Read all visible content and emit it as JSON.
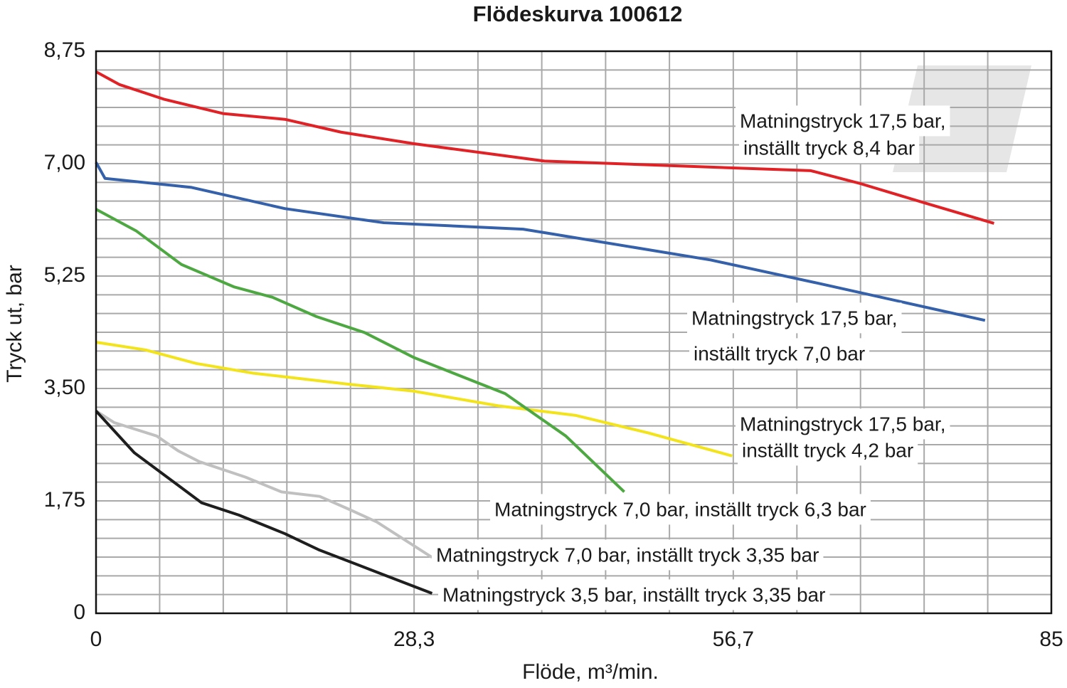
{
  "chart_data": {
    "type": "line",
    "title": "Flödeskurva 100612",
    "x_label": "Flöde, m³/min.",
    "y_label": "Tryck ut, bar",
    "xlim": [
      0,
      85
    ],
    "ylim": [
      0,
      8.75
    ],
    "xticks": [
      0,
      {
        "value": 28.3,
        "label": "28,3"
      },
      {
        "value": 56.7,
        "label": "56,7"
      },
      85
    ],
    "yticks": [
      0,
      {
        "value": 1.75,
        "label": "1,75"
      },
      {
        "value": 3.5,
        "label": "3,50"
      },
      {
        "value": 5.25,
        "label": "5,25"
      },
      {
        "value": 7,
        "label": "7,00"
      },
      {
        "value": 8.75,
        "label": "8,75"
      }
    ],
    "grid": true,
    "series": [
      {
        "color": "#e02226",
        "label_lines": [
          "Matningstryck 17,5 bar,",
          "inställt tryck 8,4 bar"
        ],
        "x": [
          0,
          2.1,
          6.1,
          11.3,
          16.8,
          21.8,
          28.3,
          39.9,
          63.6,
          68.0,
          73.7,
          79.9
        ],
        "values": [
          8.43,
          8.23,
          8.0,
          7.78,
          7.69,
          7.49,
          7.31,
          7.04,
          6.89,
          6.69,
          6.39,
          6.07
        ]
      },
      {
        "color": "#3561ab",
        "label_lines": [
          "Matningstryck 17,5 bar,",
          "inställt tryck 7,0 bar"
        ],
        "x": [
          0,
          0.8,
          8.5,
          16.8,
          25.6,
          38.0,
          54.7,
          64.2,
          79.1
        ],
        "values": [
          7.02,
          6.77,
          6.63,
          6.3,
          6.08,
          5.98,
          5.5,
          5.14,
          4.56
        ]
      },
      {
        "color": "#f2e31b",
        "label_lines": [
          "Matningstryck 17,5 bar,",
          "inställt tryck 4,2 bar"
        ],
        "x": [
          0,
          4.4,
          8.9,
          13.9,
          22.8,
          28.2,
          35.8,
          42.7,
          49.1,
          56.6
        ],
        "values": [
          4.22,
          4.1,
          3.89,
          3.74,
          3.56,
          3.46,
          3.23,
          3.08,
          2.81,
          2.45
        ]
      },
      {
        "color": "#4ea842",
        "label_lines": [
          "Matningstryck 7,0 bar, inställt tryck 6,3 bar"
        ],
        "x": [
          0,
          3.6,
          7.6,
          12.3,
          15.7,
          19.6,
          23.9,
          28.3,
          36.4,
          41.8,
          47.0
        ],
        "values": [
          6.29,
          5.95,
          5.43,
          5.08,
          4.92,
          4.62,
          4.37,
          3.98,
          3.42,
          2.76,
          1.89
        ]
      },
      {
        "color": "#c0c0c0",
        "label_lines": [
          "Matningstryck 7,0 bar, inställt tryck 3,35 bar"
        ],
        "x": [
          0,
          1.6,
          5.4,
          7.3,
          9.2,
          13.3,
          16.5,
          19.9,
          22.5,
          25.0,
          29.9
        ],
        "values": [
          3.15,
          2.97,
          2.76,
          2.53,
          2.36,
          2.12,
          1.89,
          1.82,
          1.62,
          1.42,
          0.87
        ]
      },
      {
        "color": "#1e1e1e",
        "label_lines": [
          "Matningstryck 3,5 bar, inställt tryck 3,35 bar"
        ],
        "x": [
          0,
          3.4,
          9.4,
          12.7,
          16.8,
          19.8,
          25.0,
          29.9
        ],
        "values": [
          3.15,
          2.5,
          1.72,
          1.53,
          1.24,
          0.99,
          0.64,
          0.31
        ]
      }
    ]
  }
}
